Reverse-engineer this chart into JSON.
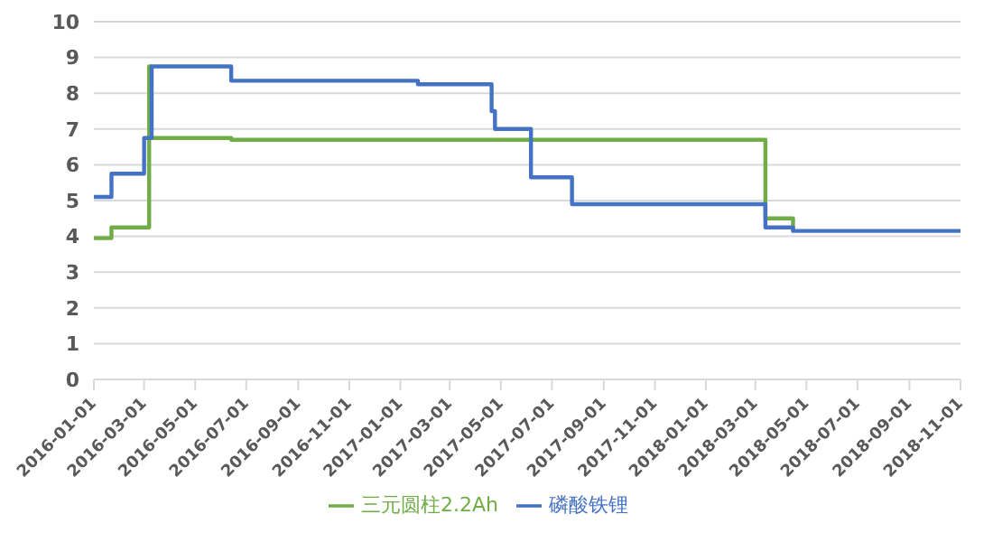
{
  "chart_data": {
    "type": "step",
    "xlim": [
      "2016-01-01",
      "2018-11-01"
    ],
    "xticks": [
      "2016-01-01",
      "2016-03-01",
      "2016-05-01",
      "2016-07-01",
      "2016-09-01",
      "2016-11-01",
      "2017-01-01",
      "2017-03-01",
      "2017-05-01",
      "2017-07-01",
      "2017-09-01",
      "2017-11-01",
      "2018-01-01",
      "2018-03-01",
      "2018-05-01",
      "2018-07-01",
      "2018-09-01",
      "2018-11-01"
    ],
    "ylim": [
      0,
      10
    ],
    "yticks": [
      0,
      1,
      2,
      3,
      4,
      5,
      6,
      7,
      8,
      9,
      10
    ],
    "grid": "y",
    "legend": "bottom",
    "marker": "none",
    "line_style": "solid",
    "series": [
      {
        "name": "三元圆柱2.2Ah",
        "color": "#70ad47",
        "x": [
          "2016-01-01",
          "2016-01-22",
          "2016-03-07",
          "2016-03-09",
          "2016-06-13",
          "2018-03-13",
          "2018-04-15"
        ],
        "values": [
          3.95,
          4.25,
          8.75,
          6.75,
          6.7,
          4.5,
          4.15
        ]
      },
      {
        "name": "磷酸铁锂",
        "color": "#4472c4",
        "x": [
          "2016-01-01",
          "2016-01-22",
          "2016-03-01",
          "2016-03-10",
          "2016-06-13",
          "2017-01-22",
          "2017-04-20",
          "2017-04-24",
          "2017-06-06",
          "2017-07-25",
          "2018-03-13",
          "2018-04-15",
          "2018-11-01"
        ],
        "values": [
          5.1,
          5.75,
          6.75,
          8.75,
          8.35,
          8.25,
          7.5,
          7.0,
          5.65,
          4.9,
          4.25,
          4.15,
          4.15
        ]
      }
    ]
  }
}
